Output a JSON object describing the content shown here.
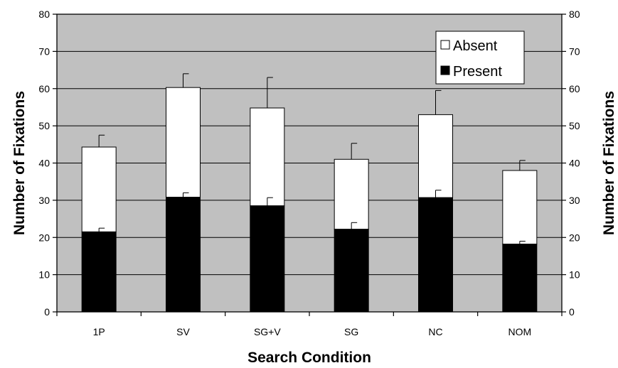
{
  "chart_data": {
    "type": "bar",
    "stacked": true,
    "categories": [
      "1P",
      "SV",
      "SG+V",
      "SG",
      "NC",
      "NOM"
    ],
    "series": [
      {
        "name": "Present",
        "color": "#000000",
        "values": [
          21.5,
          30.8,
          28.5,
          22.2,
          30.7,
          18.2
        ],
        "error_top": [
          22.5,
          32.0,
          30.7,
          24.0,
          32.7,
          19.0
        ]
      },
      {
        "name": "Absent",
        "color": "#ffffff",
        "values": [
          22.8,
          29.5,
          26.3,
          18.8,
          22.3,
          19.8
        ],
        "error_top": [
          47.5,
          64.0,
          63.0,
          45.3,
          59.5,
          40.7
        ]
      }
    ],
    "totals": [
      44.3,
      60.3,
      54.8,
      41.0,
      53.0,
      38.0
    ],
    "xlabel": "Search Condition",
    "ylabel": "Number of Fixations",
    "ylabel_right": "Number of Fixations",
    "ylim": [
      0,
      80
    ],
    "yticks": [
      0,
      10,
      20,
      30,
      40,
      50,
      60,
      70,
      80
    ],
    "grid": true,
    "legend_position": "top-right",
    "legend_order": [
      "Absent",
      "Present"
    ],
    "plot_background": "#c0c0c0"
  }
}
